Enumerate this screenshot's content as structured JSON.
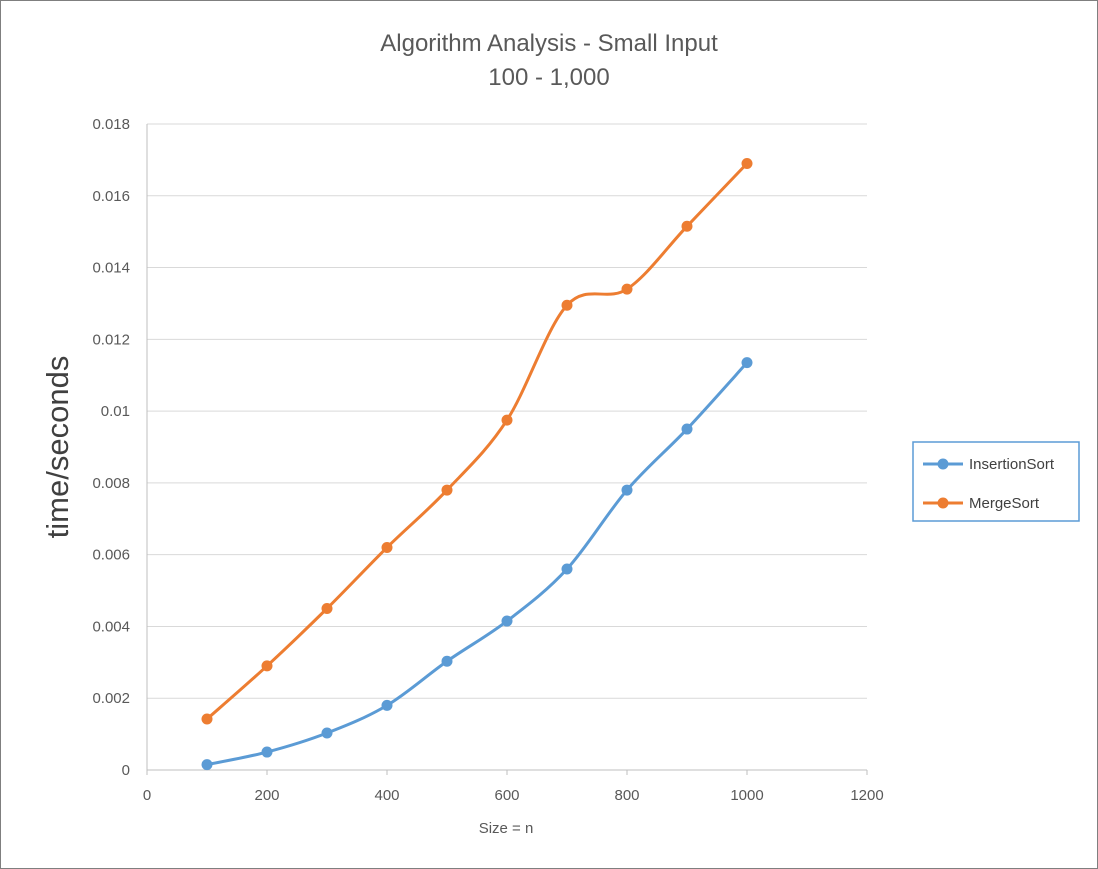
{
  "chart_data": {
    "type": "line",
    "title": "Algorithm Analysis - Small Input",
    "subtitle": "100 - 1,000",
    "xlabel": "Size = n",
    "ylabel": "time/seconds",
    "xlim": [
      0,
      1200
    ],
    "ylim": [
      0,
      0.018
    ],
    "x_ticks": [
      "0",
      "200",
      "400",
      "600",
      "800",
      "1000",
      "1200"
    ],
    "y_ticks": [
      "0",
      "0.002",
      "0.004",
      "0.006",
      "0.008",
      "0.01",
      "0.012",
      "0.014",
      "0.016",
      "0.018"
    ],
    "grid": "horizontal",
    "smooth": true,
    "legend_position": "right",
    "x": [
      100,
      200,
      300,
      400,
      500,
      600,
      700,
      800,
      900,
      1000
    ],
    "series": [
      {
        "name": "InsertionSort",
        "color": "#5b9bd5",
        "values": [
          0.00015,
          0.0005,
          0.00103,
          0.0018,
          0.00303,
          0.00415,
          0.0056,
          0.0078,
          0.0095,
          0.01135
        ]
      },
      {
        "name": "MergeSort",
        "color": "#ed7d31",
        "values": [
          0.00142,
          0.0029,
          0.0045,
          0.0062,
          0.0078,
          0.00975,
          0.01295,
          0.0134,
          0.01515,
          0.0169
        ]
      }
    ]
  }
}
